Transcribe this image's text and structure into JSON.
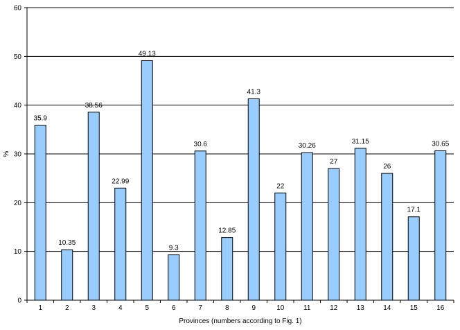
{
  "chart_data": {
    "type": "bar",
    "title": "",
    "xlabel": "Provinces (numbers according to Fig. 1)",
    "ylabel": "%",
    "ylim": [
      0,
      60
    ],
    "yticks": [
      "0",
      "10",
      "20",
      "30",
      "40",
      "50",
      "60"
    ],
    "grid": true,
    "legend": "none",
    "categories": [
      "1",
      "2",
      "3",
      "4",
      "5",
      "6",
      "7",
      "8",
      "9",
      "10",
      "11",
      "12",
      "13",
      "14",
      "15",
      "16"
    ],
    "values": [
      35.9,
      10.35,
      38.56,
      22.99,
      49.13,
      9.3,
      30.6,
      12.85,
      41.3,
      22,
      30.26,
      27,
      31.15,
      26,
      17.1,
      30.65
    ],
    "value_labels": [
      "35.9",
      "10.35",
      "38.56",
      "22.99",
      "49.13",
      "9.3",
      "30.6",
      "12.85",
      "41.3",
      "22",
      "30.26",
      "27",
      "31.15",
      "26",
      "17.1",
      "30.65"
    ],
    "colors": {
      "bar_fill": "#99CCFF",
      "bar_stroke": "#000000",
      "grid": "#000000"
    }
  }
}
